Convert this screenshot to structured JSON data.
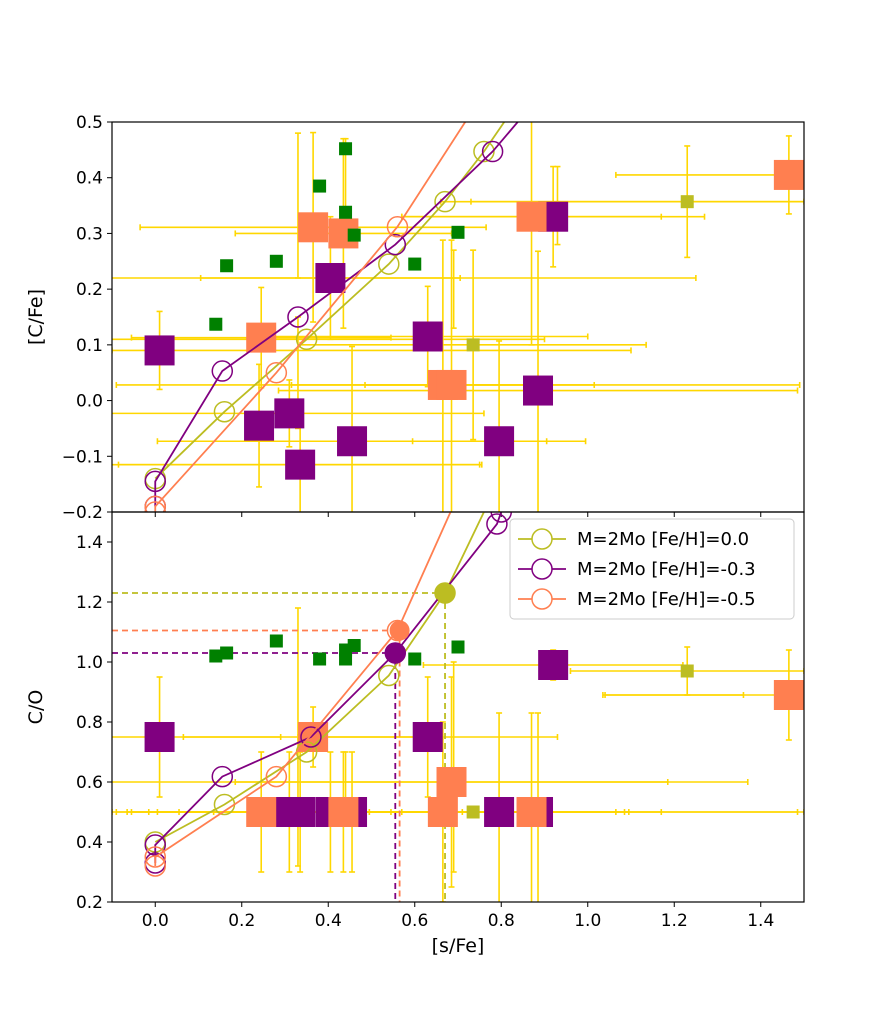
{
  "colors": {
    "model_00": "#bcbd22",
    "model_m03": "#800080",
    "model_m05": "#ff7f50",
    "errorbar": "#ffd700",
    "green_square": "#008000",
    "olive_square": "#bcbd22",
    "purple_square": "#800080",
    "coral_square": "#ff7f50"
  },
  "chart_data": [
    {
      "id": "top",
      "type": "scatter",
      "xlabel": "",
      "ylabel": "[C/Fe]",
      "xlim": [
        -0.1,
        1.5
      ],
      "ylim": [
        -0.2,
        0.5
      ],
      "yticks": [
        -0.2,
        -0.1,
        0.0,
        0.1,
        0.2,
        0.3,
        0.4,
        0.5
      ],
      "ytick_labels": [
        "−0.2",
        "−0.1",
        "0.0",
        "0.1",
        "0.2",
        "0.3",
        "0.4",
        "0.5"
      ],
      "xticks": [
        0.0,
        0.2,
        0.4,
        0.6,
        0.8,
        1.0,
        1.2,
        1.4
      ],
      "xtick_labels": [],
      "models": [
        {
          "name": "M=2Mo [Fe/H]=0.0",
          "color": "#bcbd22",
          "x": [
            0.0,
            0.16,
            0.35,
            0.54,
            0.67,
            0.76,
            0.86
          ],
          "y": [
            -0.14,
            -0.02,
            0.11,
            0.245,
            0.357,
            0.447,
            0.56
          ]
        },
        {
          "name": "M=2Mo [Fe/H]=-0.3",
          "color": "#800080",
          "x": [
            0.0,
            0.0,
            0.155,
            0.33,
            0.555,
            0.78,
            0.86
          ],
          "y": [
            -0.19,
            -0.145,
            0.053,
            0.15,
            0.28,
            0.447,
            0.52
          ]
        },
        {
          "name": "M=2Mo [Fe/H]=-0.5",
          "color": "#ff7f50",
          "x": [
            0.0,
            0.0,
            0.28,
            0.56,
            0.8
          ],
          "y": [
            -0.2,
            -0.19,
            0.05,
            0.312,
            0.6
          ]
        }
      ],
      "observations": [
        {
          "x": 0.01,
          "y": 0.09,
          "xerr": 0,
          "yerr": 0.07,
          "color": "#800080",
          "size": "large"
        },
        {
          "x": 0.24,
          "y": -0.045,
          "xerr": 0,
          "yerr": 0.11,
          "color": "#800080",
          "size": "large"
        },
        {
          "x": 0.31,
          "y": -0.023,
          "xerr": 0.45,
          "yerr": 0.06,
          "color": "#800080",
          "size": "large"
        },
        {
          "x": 0.335,
          "y": -0.115,
          "xerr": 0.42,
          "yerr": 0.1,
          "color": "#800080",
          "size": "large"
        },
        {
          "x": 0.405,
          "y": 0.22,
          "xerr": 0.3,
          "yerr": 0.11,
          "color": "#800080",
          "size": "large"
        },
        {
          "x": 0.455,
          "y": -0.073,
          "xerr": 0.45,
          "yerr": 0.17,
          "color": "#800080",
          "size": "large"
        },
        {
          "x": 0.63,
          "y": 0.115,
          "xerr": 0.37,
          "yerr": 0.09,
          "color": "#800080",
          "size": "large"
        },
        {
          "x": 0.795,
          "y": -0.073,
          "xerr": 0.2,
          "yerr": 0.18,
          "color": "#800080",
          "size": "large"
        },
        {
          "x": 0.885,
          "y": 0.018,
          "xerr": 0.6,
          "yerr": 0.25,
          "color": "#800080",
          "size": "large"
        },
        {
          "x": 0.92,
          "y": 0.33,
          "xerr": 0.35,
          "yerr": 0.09,
          "color": "#800080",
          "size": "large"
        },
        {
          "x": 0.245,
          "y": 0.113,
          "xerr": 0.3,
          "yerr": 0.09,
          "color": "#ff7f50",
          "size": "large"
        },
        {
          "x": 0.365,
          "y": 0.311,
          "xerr": 0.4,
          "yerr": 0.17,
          "color": "#ff7f50",
          "size": "large"
        },
        {
          "x": 0.435,
          "y": 0.3,
          "xerr": 0.25,
          "yerr": 0.17,
          "color": "#ff7f50",
          "size": "large"
        },
        {
          "x": 0.665,
          "y": 0.028,
          "xerr": 0.35,
          "yerr": 0.26,
          "color": "#ff7f50",
          "size": "large"
        },
        {
          "x": 0.685,
          "y": 0.028,
          "xerr": 0.2,
          "yerr": 0.26,
          "color": "#ff7f50",
          "size": "large"
        },
        {
          "x": 0.87,
          "y": 0.33,
          "xerr": 0.3,
          "yerr": 0.23,
          "color": "#ff7f50",
          "size": "large"
        },
        {
          "x": 1.465,
          "y": 0.405,
          "xerr": 0.4,
          "yerr": 0.07,
          "color": "#ff7f50",
          "size": "large"
        },
        {
          "x": 0.735,
          "y": 0.1,
          "xerr": 0.4,
          "yerr": 0.17,
          "color": "#bcbd22",
          "size": "small"
        },
        {
          "x": 1.23,
          "y": 0.357,
          "xerr": 0.5,
          "yerr": 0.1,
          "color": "#bcbd22",
          "size": "small"
        },
        {
          "x": 0.14,
          "y": 0.137,
          "color": "#008000",
          "size": "small"
        },
        {
          "x": 0.165,
          "y": 0.242,
          "color": "#008000",
          "size": "small"
        },
        {
          "x": 0.28,
          "y": 0.25,
          "color": "#008000",
          "size": "small"
        },
        {
          "x": 0.38,
          "y": 0.385,
          "color": "#008000",
          "size": "small"
        },
        {
          "x": 0.44,
          "y": 0.452,
          "color": "#008000",
          "size": "small"
        },
        {
          "x": 0.44,
          "y": 0.338,
          "color": "#008000",
          "size": "small"
        },
        {
          "x": 0.46,
          "y": 0.297,
          "color": "#008000",
          "size": "small"
        },
        {
          "x": 0.6,
          "y": 0.245,
          "color": "#008000",
          "size": "small"
        },
        {
          "x": 0.7,
          "y": 0.302,
          "color": "#008000",
          "size": "small"
        }
      ],
      "extra_errorbars": [
        {
          "x": 0.35,
          "y": 0.11,
          "xerr": 0.55,
          "yerr": 0
        },
        {
          "x": 0.45,
          "y": 0.22,
          "xerr": 0.8,
          "yerr": 0
        },
        {
          "x": 0.5,
          "y": 0.09,
          "xerr": 0.6,
          "yerr": 0
        },
        {
          "x": 0.7,
          "y": 0.028,
          "xerr": 0.79,
          "yerr": 0
        },
        {
          "x": 1.08,
          "y": 0.357,
          "xerr": 0.42,
          "yerr": 0
        },
        {
          "x": 0.32,
          "y": -0.115,
          "xerr": 0.43,
          "yerr": 0
        },
        {
          "x": 0.33,
          "y": 0.05,
          "yerr": 0.1,
          "xerr": 0
        },
        {
          "x": 0.33,
          "y": 0.35,
          "yerr": 0.13,
          "xerr": 0
        },
        {
          "x": 0.44,
          "y": 0.4,
          "yerr": 0.07,
          "xerr": 0
        },
        {
          "x": 0.93,
          "y": 0.35,
          "yerr": 0.07,
          "xerr": 0
        },
        {
          "x": 0.69,
          "y": 0.2,
          "yerr": 0.07,
          "xerr": 0
        }
      ]
    },
    {
      "id": "bottom",
      "type": "scatter",
      "xlabel": "[s/Fe]",
      "ylabel": "C/O",
      "xlim": [
        -0.1,
        1.5
      ],
      "ylim": [
        0.2,
        1.5
      ],
      "yticks": [
        0.2,
        0.4,
        0.6,
        0.8,
        1.0,
        1.2,
        1.4
      ],
      "ytick_labels": [
        "0.2",
        "0.4",
        "0.6",
        "0.8",
        "1.0",
        "1.2",
        "1.4"
      ],
      "xticks": [
        0.0,
        0.2,
        0.4,
        0.6,
        0.8,
        1.0,
        1.2,
        1.4
      ],
      "xtick_labels": [
        "0.0",
        "0.2",
        "0.4",
        "0.6",
        "0.8",
        "1.0",
        "1.2",
        "1.4"
      ],
      "legend": {
        "location": "top-right",
        "entries": [
          {
            "label": "M=2Mo [Fe/H]=0.0",
            "color": "#bcbd22"
          },
          {
            "label": "M=2Mo [Fe/H]=-0.3",
            "color": "#800080"
          },
          {
            "label": "M=2Mo [Fe/H]=-0.5",
            "color": "#ff7f50"
          }
        ]
      },
      "models": [
        {
          "name": "M=2Mo [Fe/H]=0.0",
          "color": "#bcbd22",
          "x": [
            0.0,
            0.16,
            0.35,
            0.54,
            0.67,
            0.8
          ],
          "y": [
            0.4,
            0.525,
            0.7,
            0.955,
            1.23,
            1.62
          ]
        },
        {
          "name": "M=2Mo [Fe/H]=-0.3",
          "color": "#800080",
          "x": [
            0.0,
            0.0,
            0.155,
            0.36,
            0.555,
            0.79,
            0.8
          ],
          "y": [
            0.33,
            0.39,
            0.618,
            0.75,
            1.03,
            1.46,
            1.5
          ]
        },
        {
          "name": "M=2Mo [Fe/H]=-0.5",
          "color": "#ff7f50",
          "x": [
            0.0,
            0.0,
            0.28,
            0.56,
            0.72
          ],
          "y": [
            0.32,
            0.35,
            0.618,
            1.105,
            1.62
          ]
        }
      ],
      "highlighted_points": [
        {
          "x": 0.67,
          "y": 1.23,
          "color": "#bcbd22"
        },
        {
          "x": 0.555,
          "y": 1.03,
          "color": "#800080"
        },
        {
          "x": 0.565,
          "y": 1.105,
          "color": "#ff7f50"
        }
      ],
      "observations": [
        {
          "x": 0.01,
          "y": 0.75,
          "xerr": 0.28,
          "yerr": 0.2,
          "color": "#800080",
          "size": "large"
        },
        {
          "x": 0.31,
          "y": 0.5,
          "xerr": 0.4,
          "yerr": 0.2,
          "color": "#800080",
          "size": "large"
        },
        {
          "x": 0.335,
          "y": 0.5,
          "xerr": 0.4,
          "yerr": 0.2,
          "color": "#800080",
          "size": "large"
        },
        {
          "x": 0.405,
          "y": 0.5,
          "xerr": 0.4,
          "yerr": 0.2,
          "color": "#800080",
          "size": "large"
        },
        {
          "x": 0.455,
          "y": 0.5,
          "xerr": 0.4,
          "yerr": 0.2,
          "color": "#800080",
          "size": "large"
        },
        {
          "x": 0.63,
          "y": 0.75,
          "xerr": 0.3,
          "yerr": 0.2,
          "color": "#800080",
          "size": "large"
        },
        {
          "x": 0.795,
          "y": 0.5,
          "xerr": 0.3,
          "yerr": 0.33,
          "color": "#800080",
          "size": "large"
        },
        {
          "x": 0.885,
          "y": 0.5,
          "xerr": 0.2,
          "yerr": 0.33,
          "color": "#800080",
          "size": "large"
        },
        {
          "x": 0.92,
          "y": 0.99,
          "xerr": 0.3,
          "yerr": 0.05,
          "color": "#800080",
          "size": "large"
        },
        {
          "x": 0.245,
          "y": 0.5,
          "xerr": 0.3,
          "yerr": 0.2,
          "color": "#ff7f50",
          "size": "large"
        },
        {
          "x": 0.365,
          "y": 0.75,
          "xerr": 0.3,
          "yerr": 0.1,
          "color": "#ff7f50",
          "size": "large"
        },
        {
          "x": 0.435,
          "y": 0.5,
          "xerr": 0.3,
          "yerr": 0.2,
          "color": "#ff7f50",
          "size": "large"
        },
        {
          "x": 0.665,
          "y": 0.5,
          "xerr": 0.4,
          "yerr": 0.3,
          "color": "#ff7f50",
          "size": "large"
        },
        {
          "x": 0.685,
          "y": 0.6,
          "xerr": 0.5,
          "yerr": 0.35,
          "color": "#ff7f50",
          "size": "large"
        },
        {
          "x": 0.87,
          "y": 0.5,
          "xerr": 0.3,
          "yerr": 0.33,
          "color": "#ff7f50",
          "size": "large"
        },
        {
          "x": 1.465,
          "y": 0.89,
          "xerr": 0.43,
          "yerr": 0.15,
          "color": "#ff7f50",
          "size": "large"
        },
        {
          "x": 0.735,
          "y": 0.5,
          "xerr": 0.75,
          "yerr": 0.0,
          "color": "#bcbd22",
          "size": "small"
        },
        {
          "x": 1.23,
          "y": 0.97,
          "xerr": 0.27,
          "yerr": 0.08,
          "color": "#bcbd22",
          "size": "small"
        },
        {
          "x": 0.14,
          "y": 1.02,
          "color": "#008000",
          "size": "small"
        },
        {
          "x": 0.165,
          "y": 1.03,
          "color": "#008000",
          "size": "small"
        },
        {
          "x": 0.28,
          "y": 1.07,
          "color": "#008000",
          "size": "small"
        },
        {
          "x": 0.38,
          "y": 1.01,
          "color": "#008000",
          "size": "small"
        },
        {
          "x": 0.44,
          "y": 1.04,
          "color": "#008000",
          "size": "small"
        },
        {
          "x": 0.44,
          "y": 1.01,
          "color": "#008000",
          "size": "small"
        },
        {
          "x": 0.46,
          "y": 1.055,
          "color": "#008000",
          "size": "small"
        },
        {
          "x": 0.6,
          "y": 1.01,
          "color": "#008000",
          "size": "small"
        },
        {
          "x": 0.7,
          "y": 1.05,
          "color": "#008000",
          "size": "small"
        }
      ],
      "extra_errorbars": [
        {
          "x": 0.6,
          "y": 0.6,
          "xerr": 0.77,
          "yerr": 0
        },
        {
          "x": 0.7,
          "y": 0.5,
          "xerr": 0.8,
          "yerr": 0
        },
        {
          "x": 1.2,
          "y": 0.89,
          "xerr": 0.16,
          "yerr": 0
        },
        {
          "x": 0.33,
          "y": 0.75,
          "yerr": 0.43,
          "xerr": 0
        },
        {
          "x": 0.44,
          "y": 0.6,
          "yerr": 0.1,
          "xerr": 0
        },
        {
          "x": 0.69,
          "y": 0.65,
          "yerr": 0.35,
          "xerr": 0
        }
      ]
    }
  ]
}
